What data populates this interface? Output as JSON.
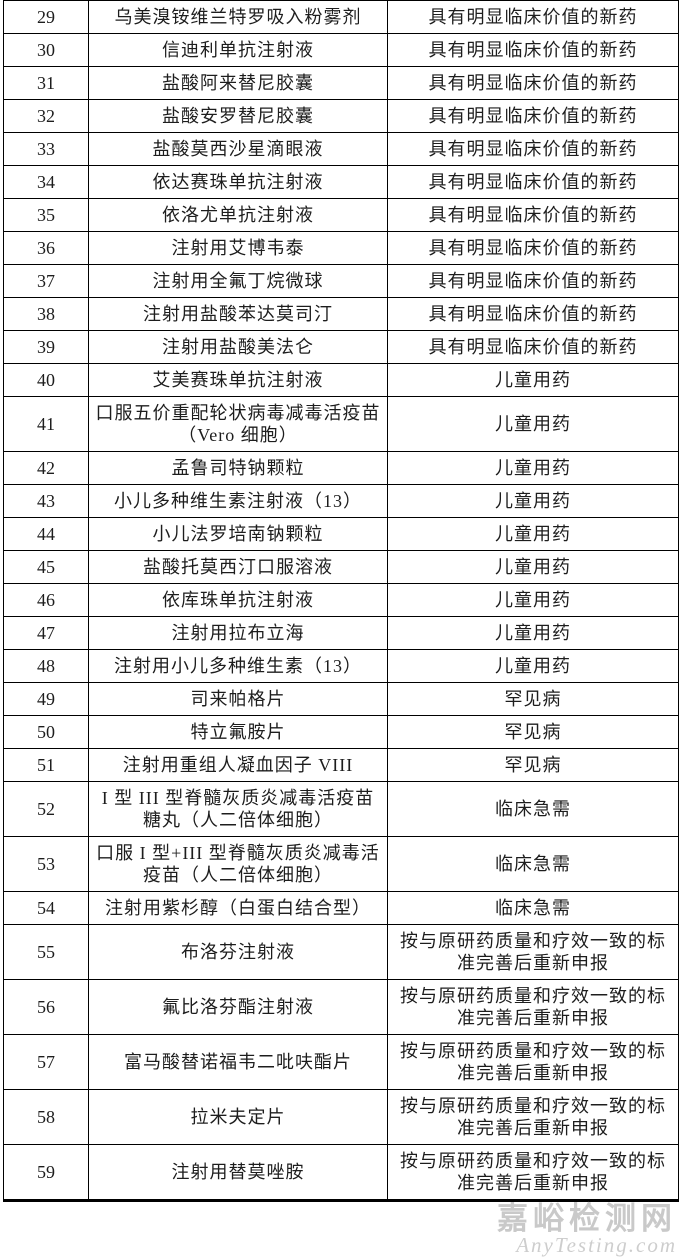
{
  "page": {
    "background_color": "#ffffff",
    "text_color": "#1d1d1d",
    "border_color": "#000000"
  },
  "table": {
    "rows": [
      {
        "no": "29",
        "name": "乌美溴铵维兰特罗吸入粉雾剂",
        "category": "具有明显临床价值的新药"
      },
      {
        "no": "30",
        "name": "信迪利单抗注射液",
        "category": "具有明显临床价值的新药"
      },
      {
        "no": "31",
        "name": "盐酸阿来替尼胶囊",
        "category": "具有明显临床价值的新药"
      },
      {
        "no": "32",
        "name": "盐酸安罗替尼胶囊",
        "category": "具有明显临床价值的新药"
      },
      {
        "no": "33",
        "name": "盐酸莫西沙星滴眼液",
        "category": "具有明显临床价值的新药"
      },
      {
        "no": "34",
        "name": "依达赛珠单抗注射液",
        "category": "具有明显临床价值的新药"
      },
      {
        "no": "35",
        "name": "依洛尤单抗注射液",
        "category": "具有明显临床价值的新药"
      },
      {
        "no": "36",
        "name": "注射用艾博韦泰",
        "category": "具有明显临床价值的新药"
      },
      {
        "no": "37",
        "name": "注射用全氟丁烷微球",
        "category": "具有明显临床价值的新药"
      },
      {
        "no": "38",
        "name": "注射用盐酸苯达莫司汀",
        "category": "具有明显临床价值的新药"
      },
      {
        "no": "39",
        "name": "注射用盐酸美法仑",
        "category": "具有明显临床价值的新药"
      },
      {
        "no": "40",
        "name": "艾美赛珠单抗注射液",
        "category": "儿童用药"
      },
      {
        "no": "41",
        "name": "口服五价重配轮状病毒减毒活疫苗（Vero 细胞）",
        "category": "儿童用药"
      },
      {
        "no": "42",
        "name": "孟鲁司特钠颗粒",
        "category": "儿童用药"
      },
      {
        "no": "43",
        "name": "小儿多种维生素注射液（13）",
        "category": "儿童用药"
      },
      {
        "no": "44",
        "name": "小儿法罗培南钠颗粒",
        "category": "儿童用药"
      },
      {
        "no": "45",
        "name": "盐酸托莫西汀口服溶液",
        "category": "儿童用药"
      },
      {
        "no": "46",
        "name": "依库珠单抗注射液",
        "category": "儿童用药"
      },
      {
        "no": "47",
        "name": "注射用拉布立海",
        "category": "儿童用药"
      },
      {
        "no": "48",
        "name": "注射用小儿多种维生素（13）",
        "category": "儿童用药"
      },
      {
        "no": "49",
        "name": "司来帕格片",
        "category": "罕见病"
      },
      {
        "no": "50",
        "name": "特立氟胺片",
        "category": "罕见病"
      },
      {
        "no": "51",
        "name": "注射用重组人凝血因子 VIII",
        "category": "罕见病"
      },
      {
        "no": "52",
        "name": "I 型 III 型脊髓灰质炎减毒活疫苗糖丸（人二倍体细胞）",
        "category": "临床急需"
      },
      {
        "no": "53",
        "name": "口服 I 型+III 型脊髓灰质炎减毒活疫苗（人二倍体细胞）",
        "category": "临床急需"
      },
      {
        "no": "54",
        "name": "注射用紫杉醇（白蛋白结合型）",
        "category": "临床急需"
      },
      {
        "no": "55",
        "name": "布洛芬注射液",
        "category": "按与原研药质量和疗效一致的标准完善后重新申报"
      },
      {
        "no": "56",
        "name": "氟比洛芬酯注射液",
        "category": "按与原研药质量和疗效一致的标准完善后重新申报"
      },
      {
        "no": "57",
        "name": "富马酸替诺福韦二吡呋酯片",
        "category": "按与原研药质量和疗效一致的标准完善后重新申报"
      },
      {
        "no": "58",
        "name": "拉米夫定片",
        "category": "按与原研药质量和疗效一致的标准完善后重新申报"
      },
      {
        "no": "59",
        "name": "注射用替莫唑胺",
        "category": "按与原研药质量和疗效一致的标准完善后重新申报"
      }
    ]
  },
  "watermark": {
    "site_name": "嘉峪检测网",
    "site_url_text": "AnyTesting.com"
  }
}
